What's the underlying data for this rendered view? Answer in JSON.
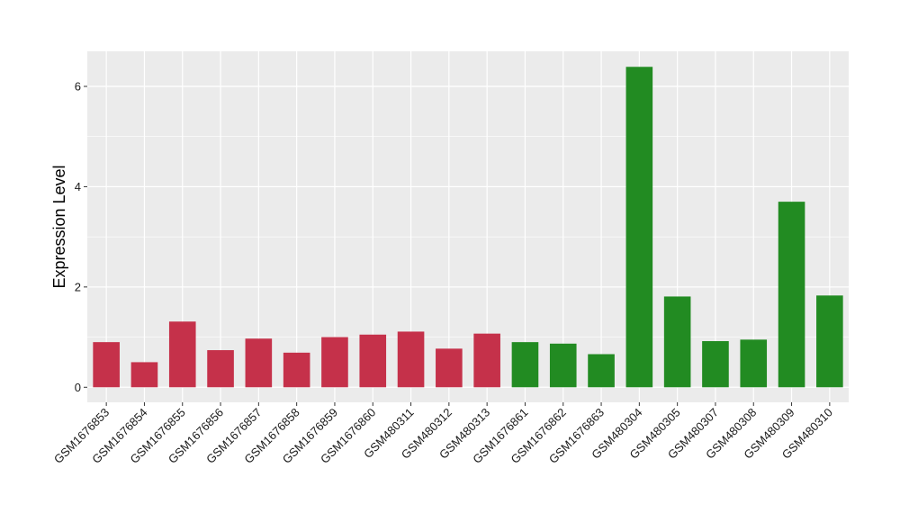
{
  "chart_data": {
    "type": "bar",
    "title": "",
    "xlabel": "",
    "ylabel": "Expression Level",
    "ylim": [
      -0.3,
      6.7
    ],
    "yticks": [
      0,
      2,
      4,
      6
    ],
    "grid": true,
    "legend": "none",
    "categories": [
      "GSM1676853",
      "GSM1676854",
      "GSM1676855",
      "GSM1676856",
      "GSM1676857",
      "GSM1676858",
      "GSM1676859",
      "GSM1676860",
      "GSM480311",
      "GSM480312",
      "GSM480313",
      "GSM1676861",
      "GSM1676862",
      "GSM1676863",
      "GSM480304",
      "GSM480305",
      "GSM480307",
      "GSM480308",
      "GSM480309",
      "GSM480310"
    ],
    "values": [
      0.9,
      0.5,
      1.31,
      0.74,
      0.97,
      0.69,
      1.0,
      1.05,
      1.11,
      0.77,
      1.07,
      0.9,
      0.87,
      0.66,
      6.39,
      1.81,
      0.92,
      0.95,
      3.7,
      1.83
    ],
    "bar_colors": [
      "#c5314a",
      "#c5314a",
      "#c5314a",
      "#c5314a",
      "#c5314a",
      "#c5314a",
      "#c5314a",
      "#c5314a",
      "#c5314a",
      "#c5314a",
      "#c5314a",
      "#228b22",
      "#228b22",
      "#228b22",
      "#228b22",
      "#228b22",
      "#228b22",
      "#228b22",
      "#228b22",
      "#228b22"
    ],
    "panel_background": "#ebebeb",
    "grid_color": "#ffffff"
  }
}
